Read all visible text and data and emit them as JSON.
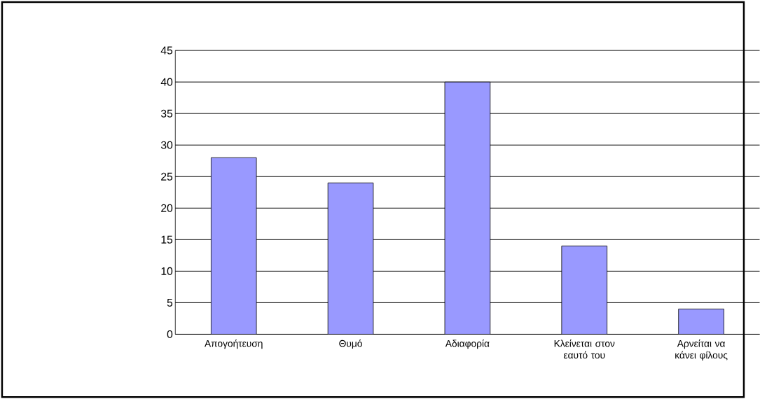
{
  "chart_data": {
    "type": "bar",
    "categories": [
      "Απογοήτευση",
      "Θυμό",
      "Αδιαφορία",
      "Κλείνεται στον εαυτό του",
      "Αρνείται να κάνει φίλους"
    ],
    "values": [
      28,
      24,
      40,
      14,
      4
    ],
    "color": "#9999ff",
    "ylim": [
      0,
      45
    ],
    "yticks": [
      0,
      5,
      10,
      15,
      20,
      25,
      30,
      35,
      40,
      45
    ],
    "grid": "y"
  }
}
